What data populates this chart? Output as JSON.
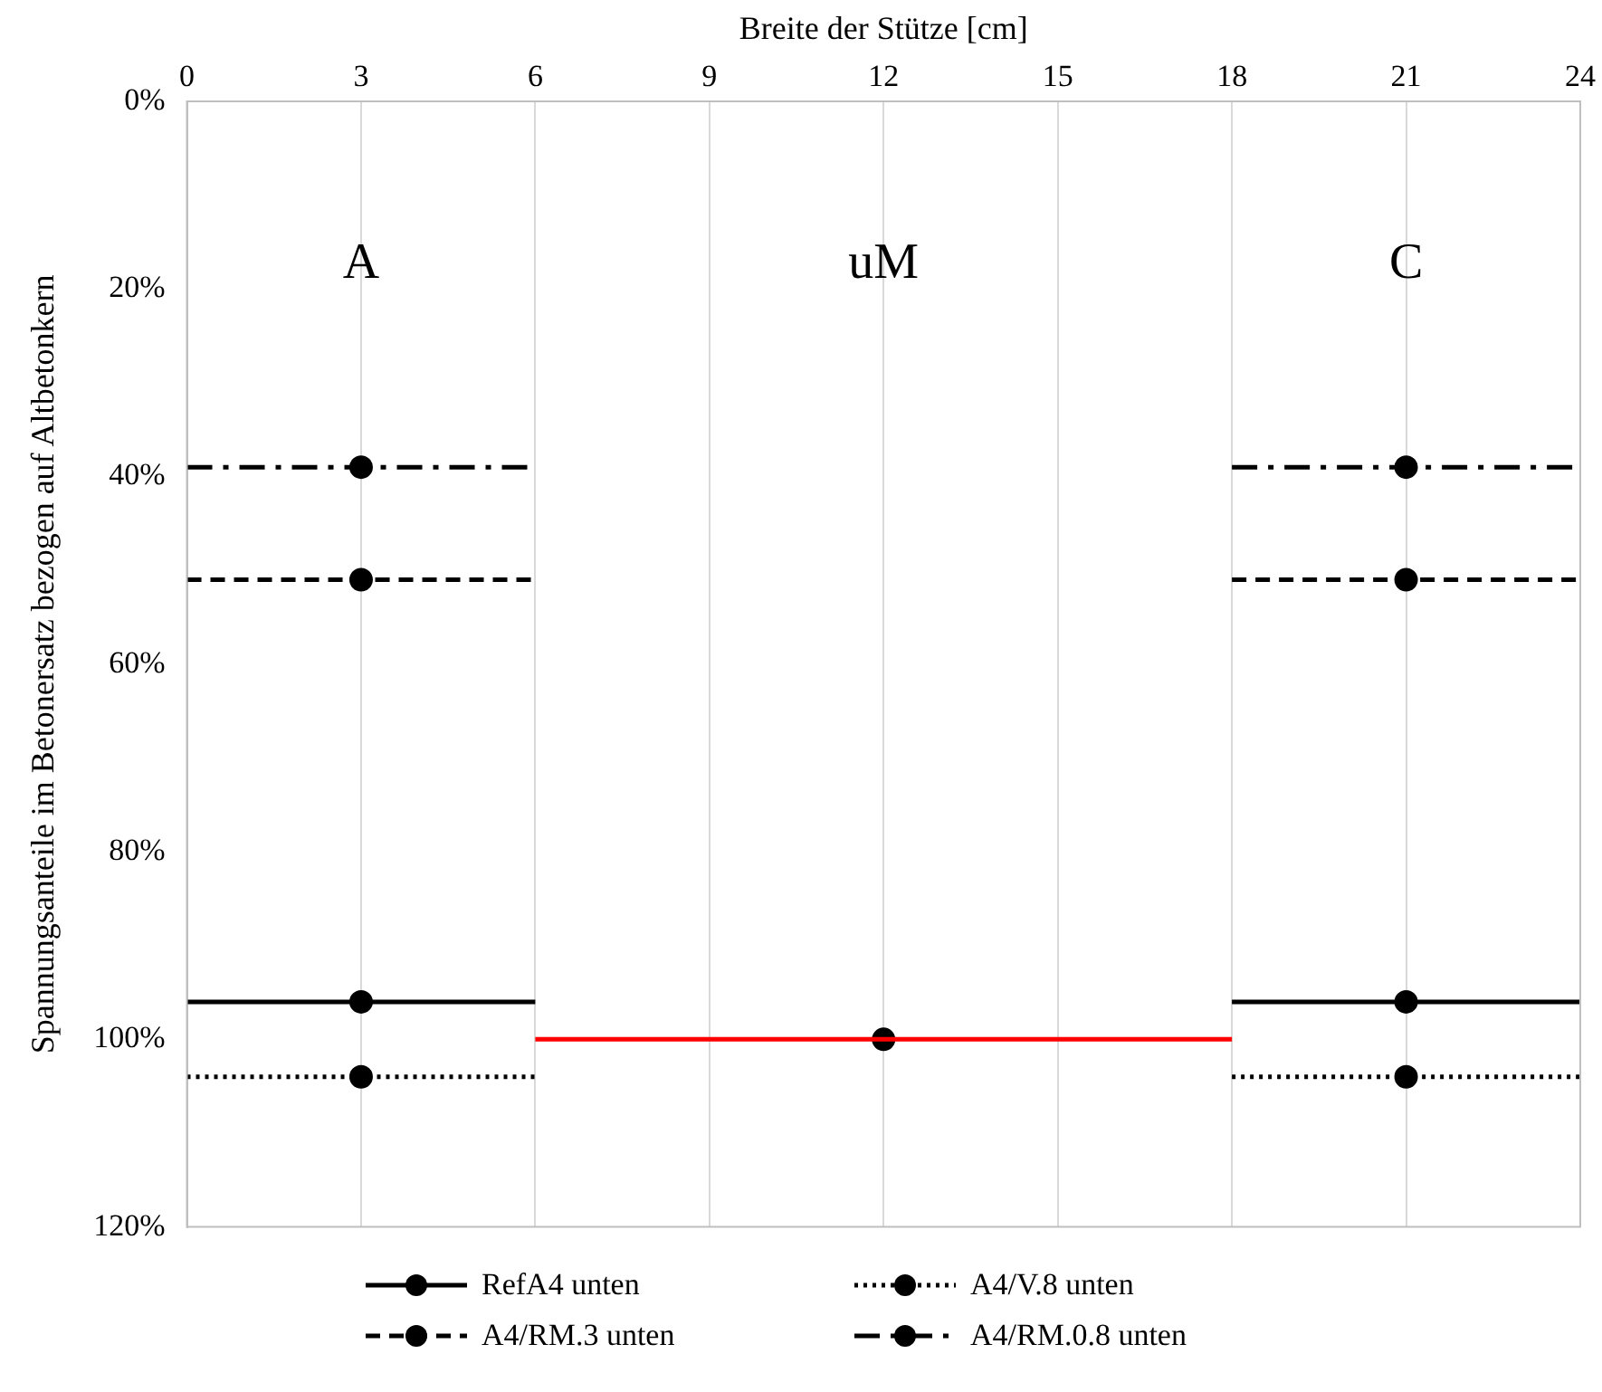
{
  "chart_data": {
    "type": "scatter",
    "xlabel": "Breite der Stütze [cm]",
    "ylabel": "Spannungsanteile im Betonersatz bezogen auf Altbetonkern",
    "xlim": [
      0,
      24
    ],
    "xticks": [
      0,
      3,
      6,
      9,
      12,
      15,
      18,
      21,
      24
    ],
    "ylim": [
      120,
      0
    ],
    "yticks": [
      {
        "value": 0,
        "label": "0%"
      },
      {
        "value": 20,
        "label": "20%"
      },
      {
        "value": 40,
        "label": "40%"
      },
      {
        "value": 60,
        "label": "60%"
      },
      {
        "value": 80,
        "label": "80%"
      },
      {
        "value": 100,
        "label": "100%"
      },
      {
        "value": 120,
        "label": "120%"
      }
    ],
    "grid": "x",
    "legend": "bottom",
    "marker": "circle",
    "annotations": [
      "A",
      "uM",
      "C"
    ],
    "series": [
      {
        "name": "RefA4 unten",
        "color": "#000000",
        "line_style": "solid",
        "x": [
          3,
          21
        ],
        "values": [
          96,
          96
        ],
        "xerrors": [
          3,
          3
        ]
      },
      {
        "name": "A4/V.8 unten",
        "color": "#000000",
        "line_style": "dotted",
        "x": [
          3,
          21
        ],
        "values": [
          104,
          104
        ],
        "xerrors": [
          3,
          3
        ]
      },
      {
        "name": "A4/RM.3 unten",
        "color": "#000000",
        "line_style": "dashed",
        "x": [
          3,
          21
        ],
        "values": [
          51,
          51
        ],
        "xerrors": [
          3,
          3
        ]
      },
      {
        "name": "A4/RM.0.8 unten",
        "color": "#000000",
        "line_style": "dashdot",
        "x": [
          3,
          21
        ],
        "values": [
          39,
          39
        ],
        "xerrors": [
          3,
          3
        ]
      },
      {
        "type": "line",
        "color": "#ff0000",
        "line_style": "solid",
        "marker": "none",
        "x": [
          6,
          18
        ],
        "values": [
          100,
          100
        ]
      },
      {
        "color": "#000000",
        "x": [
          12
        ],
        "values": [
          100
        ]
      }
    ]
  }
}
